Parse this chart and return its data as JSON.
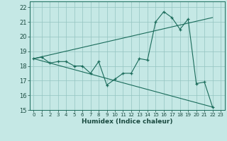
{
  "title": "",
  "xlabel": "Humidex (Indice chaleur)",
  "ylabel": "",
  "background_color": "#c5e8e5",
  "grid_color": "#93c4c0",
  "line_color": "#1a6b5a",
  "xlim": [
    -0.5,
    23.5
  ],
  "ylim": [
    15,
    22.4
  ],
  "yticks": [
    15,
    16,
    17,
    18,
    19,
    20,
    21,
    22
  ],
  "xticks": [
    0,
    1,
    2,
    3,
    4,
    5,
    6,
    7,
    8,
    9,
    10,
    11,
    12,
    13,
    14,
    15,
    16,
    17,
    18,
    19,
    20,
    21,
    22,
    23
  ],
  "series1_y": [
    18.5,
    18.6,
    18.2,
    18.3,
    18.3,
    18.0,
    18.0,
    17.5,
    18.3,
    16.7,
    17.1,
    17.5,
    17.5,
    18.5,
    18.4,
    21.0,
    21.7,
    21.3,
    20.5,
    21.2,
    16.8,
    16.9,
    15.2,
    null
  ],
  "trend1_x": [
    0,
    22
  ],
  "trend1_y": [
    18.5,
    21.3
  ],
  "trend2_x": [
    0,
    22
  ],
  "trend2_y": [
    18.5,
    15.2
  ]
}
